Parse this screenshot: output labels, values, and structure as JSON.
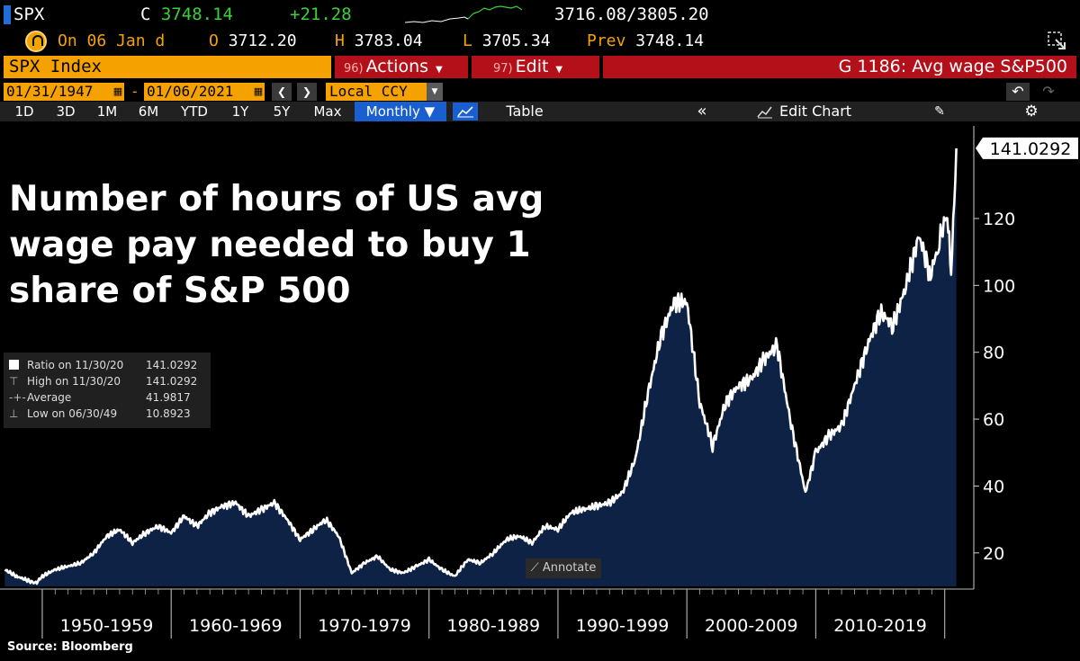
{
  "header": {
    "ticker": "SPX",
    "last_prefix": "C",
    "last": "3748.14",
    "change": "+21.28",
    "day_range": "3716.08/3805.20"
  },
  "quote": {
    "on_label": "On",
    "on_date": "06 Jan d",
    "open_label": "O",
    "open": "3712.20",
    "high_label": "H",
    "high": "3783.04",
    "low_label": "L",
    "low": "3705.34",
    "prev_label": "Prev",
    "prev": "3748.14"
  },
  "toolbar": {
    "security": "SPX Index",
    "actions_num": "96)",
    "actions_label": "Actions",
    "edit_num": "97)",
    "edit_label": "Edit",
    "chart_title": "G 1186: Avg wage S&P500"
  },
  "dates": {
    "start": "01/31/1947",
    "separator": "-",
    "end": "01/06/2021",
    "currency": "Local CCY"
  },
  "periods": [
    "1D",
    "3D",
    "1M",
    "6M",
    "YTD",
    "1Y",
    "5Y",
    "Max"
  ],
  "frequency": "Monthly",
  "buttons": {
    "table": "Table",
    "edit_chart": "Edit Chart",
    "annotate": "Annotate"
  },
  "overlay_title": "Number of hours of US avg wage pay needed to buy 1 share of S&P 500",
  "legend": {
    "rows": [
      {
        "label": "Ratio on 11/30/20",
        "value": "141.0292"
      },
      {
        "label": "High on 11/30/20",
        "value": "141.0292"
      },
      {
        "label": "Average",
        "value": "41.9817"
      },
      {
        "label": "Low on 06/30/49",
        "value": "10.8923"
      }
    ]
  },
  "source": "Source: Bloomberg",
  "colors": {
    "background": "#000000",
    "fill": "#0d2245",
    "line": "#ffffff",
    "orange": "#f5a200",
    "red": "#b4101a",
    "green": "#3ad13a",
    "blue": "#1a5fd0"
  },
  "chart_data": {
    "type": "area",
    "series": [
      {
        "name": "Ratio",
        "x": [
          1947.1,
          1948,
          1949.5,
          1950,
          1951,
          1952,
          1953,
          1954,
          1955,
          1956,
          1957,
          1958,
          1959,
          1960,
          1961,
          1962,
          1963,
          1964,
          1965,
          1966,
          1967,
          1968,
          1969,
          1970,
          1971,
          1972,
          1973,
          1974,
          1975,
          1976,
          1977,
          1978,
          1979,
          1980,
          1981,
          1982,
          1983,
          1984,
          1985,
          1986,
          1987,
          1988,
          1989,
          1990,
          1991,
          1992,
          1993,
          1994,
          1995,
          1996,
          1997,
          1998,
          1999,
          2000,
          2001,
          2002,
          2003,
          2004,
          2005,
          2006,
          2007,
          2008,
          2009.2,
          2010,
          2011,
          2012,
          2013,
          2014,
          2015,
          2016,
          2017,
          2018,
          2018.9,
          2019.5,
          2020.2,
          2020.5,
          2020.9
        ],
        "values": [
          15,
          13,
          10.9,
          13,
          15,
          16,
          17,
          20,
          25,
          27,
          23,
          26,
          28,
          26,
          31,
          28,
          32,
          34,
          35,
          31,
          33,
          35,
          30,
          24,
          27,
          30,
          25,
          14,
          17,
          19,
          15,
          14,
          16,
          18,
          15,
          13,
          18,
          17,
          20,
          24,
          25,
          23,
          28,
          27,
          32,
          33,
          34,
          35,
          38,
          48,
          68,
          85,
          95,
          95,
          65,
          52,
          65,
          70,
          72,
          78,
          82,
          60,
          38,
          50,
          55,
          58,
          70,
          82,
          92,
          88,
          100,
          115,
          103,
          112,
          122,
          103,
          141
        ]
      }
    ],
    "ylim": [
      10,
      145
    ],
    "xlim": [
      1947,
      2021
    ],
    "y_ticks": [
      20,
      40,
      60,
      80,
      100,
      120
    ],
    "x_labels": [
      {
        "label": "1950-1959",
        "start": 1950,
        "end": 1960
      },
      {
        "label": "1960-1969",
        "start": 1960,
        "end": 1970
      },
      {
        "label": "1970-1979",
        "start": 1970,
        "end": 1980
      },
      {
        "label": "1980-1989",
        "start": 1980,
        "end": 1990
      },
      {
        "label": "1990-1999",
        "start": 1990,
        "end": 2000
      },
      {
        "label": "2000-2009",
        "start": 2000,
        "end": 2010
      },
      {
        "label": "2010-2019",
        "start": 2010,
        "end": 2020
      }
    ],
    "last_value_label": "141.0292",
    "grid": false
  }
}
